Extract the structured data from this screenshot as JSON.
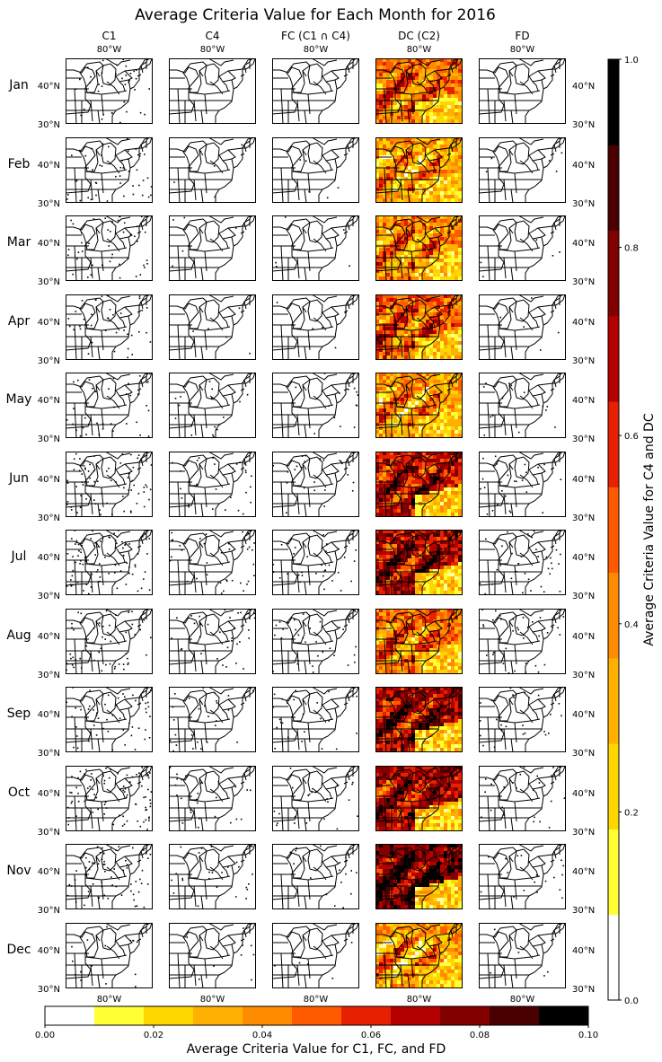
{
  "chart_data": {
    "type": "heatmap",
    "title": "Average Criteria Value for Each Month for 2016",
    "columns": [
      "C1",
      "C4",
      "FC (C1 ∩ C4)",
      "DC (C2)",
      "FD"
    ],
    "rows": [
      "Jan",
      "Feb",
      "Mar",
      "Apr",
      "May",
      "Jun",
      "Jul",
      "Aug",
      "Sep",
      "Oct",
      "Nov",
      "Dec"
    ],
    "lon_tick_label": "80°W",
    "lat_tick_labels": [
      "40°N",
      "30°N"
    ],
    "colorbar_right": {
      "label": "Average Criteria Value for C4 and DC",
      "range": [
        0,
        1
      ],
      "ticks": [
        "0.0",
        "0.2",
        "0.4",
        "0.6",
        "0.8",
        "1.0"
      ],
      "tick_values": [
        0,
        0.2,
        0.4,
        0.6,
        0.8,
        1.0
      ],
      "levels": 11
    },
    "colorbar_bottom": {
      "label": "Average Criteria Value for C1, FC, and FD",
      "range": [
        0,
        0.1
      ],
      "ticks": [
        "0.00",
        "0.02",
        "0.04",
        "0.06",
        "0.08",
        "0.10"
      ],
      "tick_values": [
        0,
        0.02,
        0.04,
        0.06,
        0.08,
        0.1
      ],
      "levels": 11
    },
    "colormap": [
      "#ffffff",
      "#ffffa0",
      "#ffff33",
      "#ffd700",
      "#ffb000",
      "#ff8c00",
      "#ff5a00",
      "#e62000",
      "#b40000",
      "#820000",
      "#4a0000",
      "#000000"
    ],
    "panel_intensity": {
      "C1": [
        0.04,
        0.05,
        0.05,
        0.04,
        0.04,
        0.08,
        0.09,
        0.06,
        0.06,
        0.09,
        0.07,
        0.02
      ],
      "C4": [
        0.0,
        0.005,
        0.005,
        0.005,
        0.02,
        0.03,
        0.04,
        0.04,
        0.03,
        0.03,
        0.03,
        0.01
      ],
      "FC (C1 ∩ C4)": [
        0.0,
        0.005,
        0.005,
        0.005,
        0.015,
        0.025,
        0.035,
        0.035,
        0.025,
        0.025,
        0.02,
        0.005
      ],
      "DC (C2)": [
        0.45,
        0.35,
        0.4,
        0.5,
        0.35,
        0.65,
        0.7,
        0.45,
        0.7,
        0.7,
        0.8,
        0.35
      ],
      "FD": [
        0.0,
        0.005,
        0.005,
        0.005,
        0.015,
        0.03,
        0.04,
        0.04,
        0.03,
        0.025,
        0.02,
        0.005
      ]
    }
  }
}
